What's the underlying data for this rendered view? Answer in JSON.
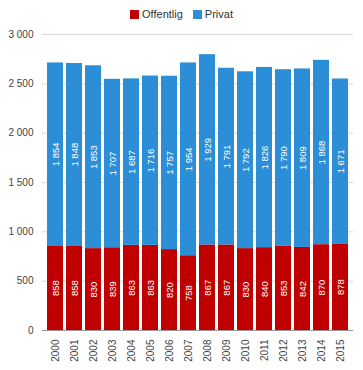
{
  "chart_data": {
    "type": "bar",
    "stacked": true,
    "data_labels": true,
    "grid": true,
    "legend": "top",
    "categories": [
      "2000",
      "2001",
      "2002",
      "2003",
      "2004",
      "2005",
      "2006",
      "2007",
      "2008",
      "2009",
      "2010",
      "2011",
      "2012",
      "2013",
      "2014",
      "2015"
    ],
    "series": [
      {
        "name": "Offentlig",
        "color": "#c00000",
        "values": [
          858,
          858,
          830,
          839,
          863,
          863,
          820,
          758,
          867,
          867,
          830,
          840,
          853,
          842,
          870,
          878
        ]
      },
      {
        "name": "Privat",
        "color": "#2b8ed6",
        "values": [
          1854,
          1848,
          1853,
          1707,
          1687,
          1716,
          1757,
          1954,
          1929,
          1791,
          1792,
          1826,
          1790,
          1809,
          1868,
          1671
        ],
        "value_labels": [
          "1 854",
          "1 848",
          "1 853",
          "1 707",
          "1 687",
          "1 716",
          "1 757",
          "1 954",
          "1 929",
          "1 791",
          "1 792",
          "1 826",
          "1 790",
          "1 809",
          "1 868",
          "1 671"
        ]
      }
    ],
    "ylim": [
      0,
      3000
    ],
    "yticks": [
      0,
      500,
      {
        "value": 1000,
        "label": "1 000"
      },
      {
        "value": 1500,
        "label": "1 500"
      },
      {
        "value": 2000,
        "label": "2 000"
      },
      {
        "value": 2500,
        "label": "2 500"
      },
      {
        "value": 3000,
        "label": "3 000"
      }
    ]
  }
}
